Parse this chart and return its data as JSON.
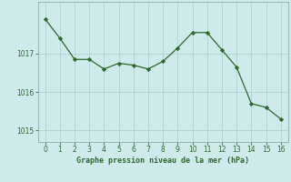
{
  "x": [
    0,
    1,
    2,
    3,
    4,
    5,
    6,
    7,
    8,
    9,
    10,
    11,
    12,
    13,
    14,
    15,
    16
  ],
  "y": [
    1017.9,
    1017.4,
    1016.85,
    1016.85,
    1016.6,
    1016.75,
    1016.7,
    1016.6,
    1016.8,
    1017.15,
    1017.55,
    1017.55,
    1017.1,
    1016.65,
    1015.7,
    1015.6,
    1015.3
  ],
  "line_color": "#2d6a2d",
  "marker_color": "#2d6a2d",
  "bg_color": "#ceeaea",
  "grid_color": "#aacece",
  "xlabel": "Graphe pression niveau de la mer (hPa)",
  "xlabel_color": "#2d6a2d",
  "tick_color": "#2d6a2d",
  "axis_color": "#8ab0b0",
  "ylim": [
    1014.7,
    1018.35
  ],
  "xlim": [
    -0.5,
    16.5
  ],
  "yticks": [
    1015,
    1016,
    1017
  ],
  "xticks": [
    0,
    1,
    2,
    3,
    4,
    5,
    6,
    7,
    8,
    9,
    10,
    11,
    12,
    13,
    14,
    15,
    16
  ]
}
